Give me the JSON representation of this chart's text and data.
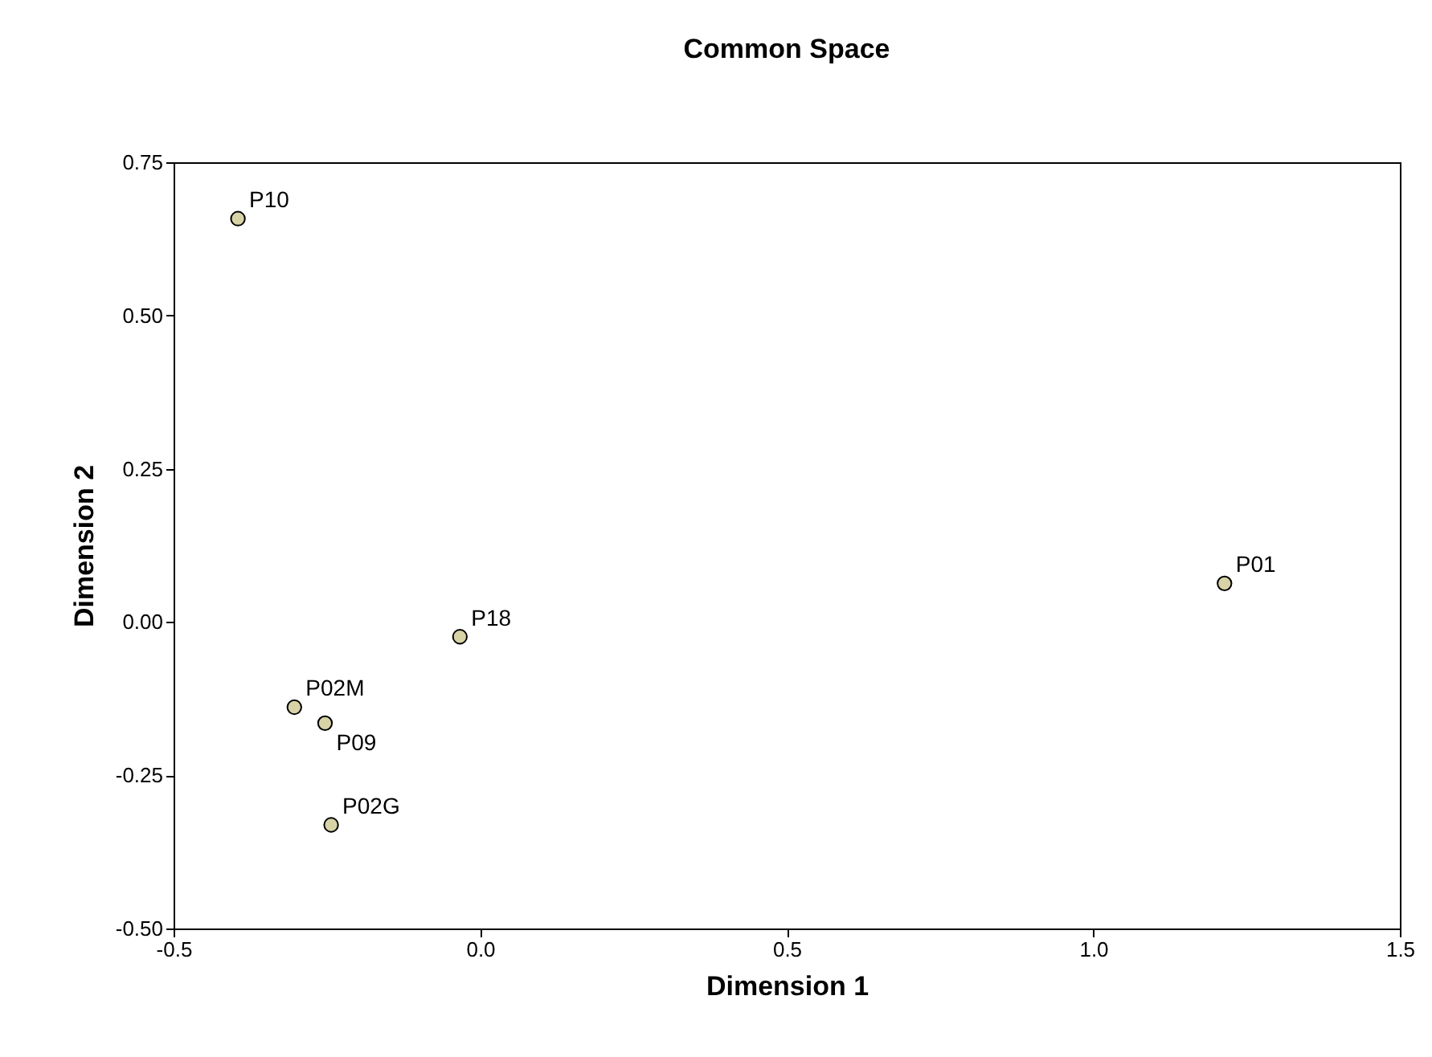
{
  "chart_data": {
    "type": "scatter",
    "title": "Common Space",
    "xlabel": "Dimension 1",
    "ylabel": "Dimension 2",
    "x": [
      -0.395,
      1.214,
      -0.033,
      -0.303,
      -0.253,
      -0.243
    ],
    "series": [
      {
        "color": "#d8d3a6",
        "values": [
          0.658,
          0.063,
          -0.024,
          -0.139,
          -0.165,
          -0.331
        ]
      }
    ],
    "annotations": [
      {
        "text": "P10",
        "x": -0.395,
        "y": 0.658
      },
      {
        "text": "P01",
        "x": 1.214,
        "y": 0.063
      },
      {
        "text": "P18",
        "x": -0.033,
        "y": -0.024
      },
      {
        "text": "P02M",
        "x": -0.303,
        "y": -0.139
      },
      {
        "text": "P09",
        "x": -0.253,
        "y": -0.165
      },
      {
        "text": "P02G",
        "x": -0.243,
        "y": -0.331
      }
    ],
    "xlim": [
      -0.5,
      1.5
    ],
    "xticks": [
      {
        "value": -0.5,
        "label": "-0.5"
      },
      {
        "value": 0,
        "label": "0.0"
      },
      {
        "value": 0.5,
        "label": "0.5"
      },
      {
        "value": 1,
        "label": "1.0"
      },
      {
        "value": 1.5,
        "label": "1.5"
      }
    ],
    "ylim": [
      -0.5,
      0.75
    ],
    "yticks": [
      {
        "value": -0.5,
        "label": "-0.50"
      },
      {
        "value": -0.25,
        "label": "-0.25"
      },
      {
        "value": 0,
        "label": "0.00"
      },
      {
        "value": 0.25,
        "label": "0.25"
      },
      {
        "value": 0.5,
        "label": "0.50"
      },
      {
        "value": 0.75,
        "label": "0.75"
      }
    ],
    "grid": false,
    "legend": false,
    "marker": "circle"
  }
}
